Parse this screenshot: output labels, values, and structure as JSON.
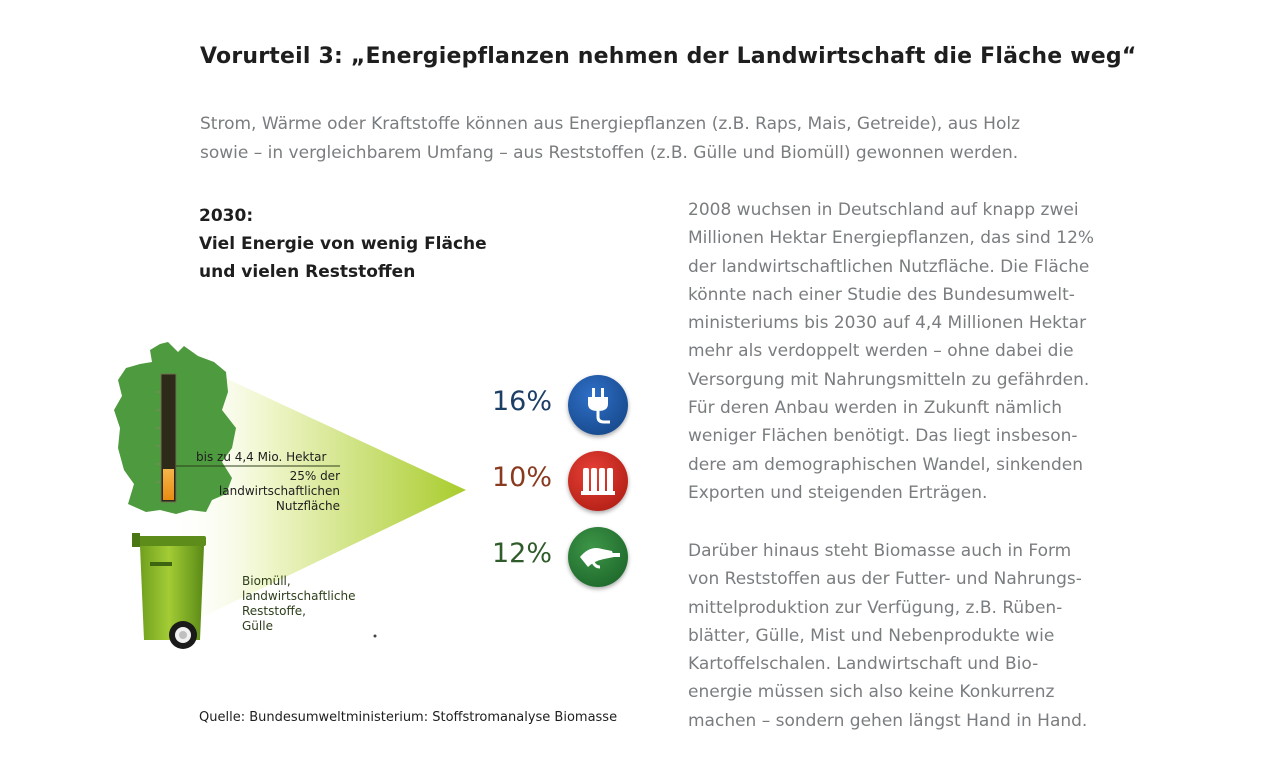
{
  "title": "Vorurteil 3: „Energiepflanzen nehmen der Landwirtschaft die Fläche weg“",
  "intro": {
    "line1": "Strom, Wärme oder Kraftstoffe können aus Energiepflanzen (z.B. Raps, Mais, Getreide), aus Holz",
    "line2": "sowie – in vergleichbarem Umfang – aus Reststoffen (z.B. Gülle und Biomüll) gewonnen werden."
  },
  "graphic": {
    "heading": {
      "line1": "2030:",
      "line2": "Viel Energie von wenig Fläche",
      "line3": "und vielen Reststoffen"
    },
    "hectare_label": "bis zu 4,4 Mio. Hektar",
    "share_label": {
      "line1": "25% der",
      "line2": "landwirtschaftlichen",
      "line3": "Nutzfläche"
    },
    "residue_label": {
      "line1": "Biomüll,",
      "line2": "landwirtschaftliche",
      "line3": "Reststoffe,",
      "line4": "Gülle"
    },
    "land_share_fill": 0.25,
    "shares": [
      {
        "value": "16%",
        "icon": "power-plug-icon",
        "color": "#1d3f66"
      },
      {
        "value": "10%",
        "icon": "radiator-icon",
        "color": "#8a3a1f"
      },
      {
        "value": "12%",
        "icon": "fuel-nozzle-icon",
        "color": "#2f5c2a"
      }
    ],
    "source": "Quelle: Bundesumweltministerium: Stoffstromanalyse Biomasse"
  },
  "body": {
    "para1": [
      "2008 wuchsen in Deutschland auf knapp zwei",
      "Millionen Hektar Energiepflanzen, das sind 12%",
      "der landwirtschaftlichen Nutzfläche. Die Fläche",
      "könnte nach einer Studie des Bundesumwelt-",
      "ministeriums bis 2030 auf 4,4 Millionen Hektar",
      "mehr als verdoppelt werden – ohne dabei die",
      "Versorgung mit Nahrungsmitteln zu gefährden.",
      "Für deren Anbau werden in Zukunft nämlich",
      "weniger Flächen benötigt. Das liegt insbeson-",
      "dere am demographischen Wandel, sinkenden",
      "Exporten und steigenden Erträgen."
    ],
    "para2": [
      "Darüber hinaus steht Biomasse auch in Form",
      "von Reststoffen aus der Futter- und Nahrungs-",
      "mittelproduktion zur Verfügung, z.B. Rüben-",
      "blätter, Gülle, Mist und Nebenprodukte wie",
      "Kartoffelschalen. Landwirtschaft und Bio-",
      "energie müssen sich also keine Konkurrenz",
      "machen – sondern gehen längst Hand in Hand."
    ]
  }
}
